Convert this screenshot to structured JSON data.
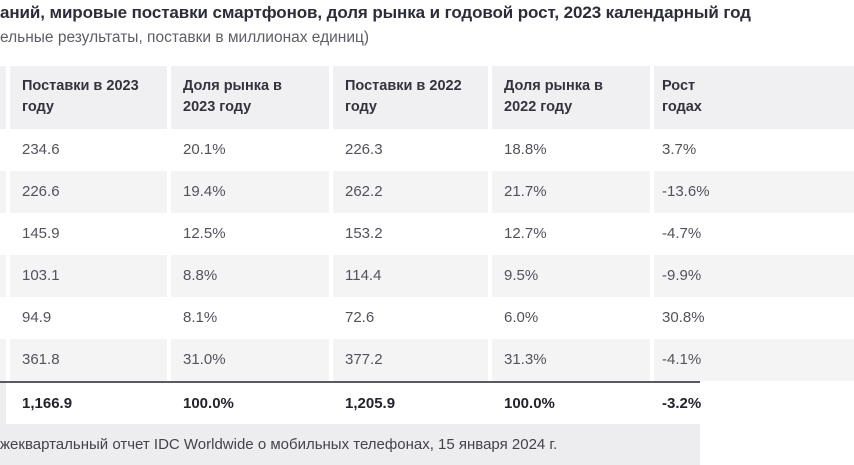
{
  "chart_data": {
    "type": "table",
    "title": "аний, мировые поставки смартфонов, доля рынка и годовой рост, 2023 календарный год",
    "subtitle": "ельные результаты, поставки в миллионах единиц)",
    "columns": [
      "Поставки в 2023 году",
      "Доля рынка в 2023 году",
      "Поставки в 2022 году",
      "Доля рынка в 2022 году",
      "Рост годах"
    ],
    "rows": [
      [
        "234.6",
        "20.1%",
        "226.3",
        "18.8%",
        "3.7%"
      ],
      [
        "226.6",
        "19.4%",
        "262.2",
        "21.7%",
        "-13.6%"
      ],
      [
        "145.9",
        "12.5%",
        "153.2",
        "12.7%",
        "-4.7%"
      ],
      [
        "103.1",
        "8.8%",
        "114.4",
        "9.5%",
        "-9.9%"
      ],
      [
        "94.9",
        "8.1%",
        "72.6",
        "6.0%",
        "30.8%"
      ],
      [
        "361.8",
        "31.0%",
        "377.2",
        "31.3%",
        "-4.1%"
      ]
    ],
    "total_row": [
      "1,166.9",
      "100.0%",
      "1,205.9",
      "100.0%",
      "-3.2%"
    ],
    "source": "жеквартальный отчет IDC Worldwide о мобильных телефонах, 15 января 2024 г."
  },
  "table_display": {
    "headers": [
      {
        "l1": "Поставки в 2023",
        "l2": "году"
      },
      {
        "l1": "Доля рынка в",
        "l2": "2023 году"
      },
      {
        "l1": "Поставки в 2022",
        "l2": "году"
      },
      {
        "l1": "Доля рынка в",
        "l2": "2022 году"
      },
      {
        "l1": "Рост",
        "l2": "годах"
      }
    ]
  },
  "colors": {
    "header_bg": "#f0f0f2",
    "stripe_bg": "#f4f4f5",
    "footer_bg": "#ededef",
    "divider": "#5a5a64",
    "title_text": "#2d2d3a",
    "cell_text": "#52525c"
  }
}
